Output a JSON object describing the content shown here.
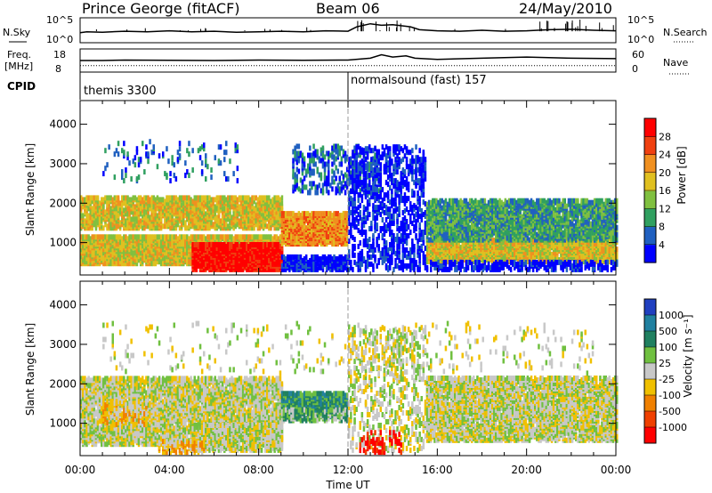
{
  "header": {
    "station": "Prince George (fitACF)",
    "beam": "Beam 06",
    "date": "24/May/2010"
  },
  "strip_nsky": {
    "left_label": "N.Sky",
    "right_label": "N.Search",
    "ticks_left": [
      "10^5",
      "10^0"
    ],
    "ticks_right": [
      "10^5",
      "10^0"
    ],
    "nsky_series": [
      [
        0.0,
        2.0
      ],
      [
        0.3,
        2.2
      ],
      [
        1.0,
        2.1
      ],
      [
        2.0,
        2.3
      ],
      [
        3.0,
        2.2
      ],
      [
        4.0,
        2.4
      ],
      [
        5.0,
        2.2
      ],
      [
        6.0,
        2.3
      ],
      [
        7.0,
        2.1
      ],
      [
        8.0,
        2.2
      ],
      [
        9.0,
        2.3
      ],
      [
        10.0,
        2.2
      ],
      [
        11.0,
        2.4
      ],
      [
        12.0,
        2.3
      ],
      [
        12.4,
        3.2
      ],
      [
        13.0,
        3.8
      ],
      [
        13.5,
        3.5
      ],
      [
        14.0,
        3.6
      ],
      [
        14.8,
        3.2
      ],
      [
        15.2,
        2.6
      ],
      [
        16.0,
        2.4
      ],
      [
        17.0,
        2.3
      ],
      [
        18.0,
        2.5
      ],
      [
        19.0,
        2.3
      ],
      [
        20.0,
        2.4
      ],
      [
        21.0,
        2.6
      ],
      [
        22.0,
        2.7
      ],
      [
        23.0,
        2.5
      ],
      [
        24.0,
        2.4
      ]
    ]
  },
  "strip_freq": {
    "left_label": "Freq.",
    "left_unit": "[MHz]",
    "right_label": "Nave",
    "ticks_left": [
      "18",
      "8"
    ],
    "ticks_right": [
      "60",
      "0"
    ],
    "nave_series": [
      [
        0.0,
        13.0
      ],
      [
        1.0,
        13.0
      ],
      [
        2.0,
        13.2
      ],
      [
        4.0,
        13.1
      ],
      [
        6.0,
        13.0
      ],
      [
        8.0,
        13.2
      ],
      [
        10.0,
        13.1
      ],
      [
        12.0,
        13.2
      ],
      [
        13.0,
        14.0
      ],
      [
        13.5,
        15.5
      ],
      [
        14.0,
        14.5
      ],
      [
        14.6,
        15.0
      ],
      [
        15.0,
        14.0
      ],
      [
        16.0,
        13.5
      ],
      [
        18.0,
        14.0
      ],
      [
        20.0,
        14.5
      ],
      [
        22.0,
        14.0
      ],
      [
        24.0,
        13.8
      ]
    ],
    "freq_series": [
      [
        0.0,
        10.8
      ],
      [
        24.0,
        10.8
      ]
    ]
  },
  "cpid": {
    "label": "CPID",
    "modes": [
      {
        "start_hour": 0.0,
        "text": "themis 3300"
      },
      {
        "start_hour": 12.0,
        "text": "normalsound (fast) 157"
      }
    ]
  },
  "chart_data": [
    {
      "type": "heatmap",
      "title": "",
      "xlabel": "",
      "ylabel": "Slant Range [km]",
      "ylim": [
        180,
        4600
      ],
      "yticks": [
        1000,
        2000,
        3000,
        4000
      ],
      "xlim": [
        0,
        24
      ],
      "colorbar_label": "Power [dB]",
      "colorbar_ticks": [
        "4",
        "8",
        "12",
        "16",
        "20",
        "24",
        "28"
      ],
      "colors": [
        "#0000ff",
        "#2060c0",
        "#30a060",
        "#80c040",
        "#e0c020",
        "#f09020",
        "#f04010",
        "#ff0000"
      ],
      "value_levels": [
        2,
        6,
        10,
        14,
        18,
        22,
        26,
        30
      ],
      "regions": [
        {
          "t0": 0.0,
          "t1": 9.0,
          "r0": 400,
          "r1": 1100,
          "level": 4,
          "density": 0.85
        },
        {
          "t0": 0.0,
          "t1": 9.0,
          "r0": 1300,
          "r1": 2100,
          "level": 4,
          "density": 0.7
        },
        {
          "t0": 5.0,
          "t1": 9.0,
          "r0": 250,
          "r1": 900,
          "level": 7,
          "density": 0.95
        },
        {
          "t0": 9.0,
          "t1": 12.0,
          "r0": 900,
          "r1": 1700,
          "level": 5,
          "density": 0.85
        },
        {
          "t0": 9.0,
          "t1": 12.0,
          "r0": 250,
          "r1": 600,
          "level": 0,
          "density": 0.7
        },
        {
          "t0": 9.5,
          "t1": 13.5,
          "r0": 2200,
          "r1": 3400,
          "level": 1,
          "density": 0.25
        },
        {
          "t0": 12.0,
          "t1": 15.5,
          "r0": 250,
          "r1": 3400,
          "level": 0,
          "density": 0.3
        },
        {
          "t0": 15.5,
          "t1": 24.0,
          "r0": 450,
          "r1": 1000,
          "level": 4,
          "density": 0.8
        },
        {
          "t0": 15.5,
          "t1": 24.0,
          "r0": 1000,
          "r1": 2000,
          "level": 2,
          "density": 0.75
        },
        {
          "t0": 15.5,
          "t1": 24.0,
          "r0": 250,
          "r1": 450,
          "level": 0,
          "density": 0.5
        },
        {
          "t0": 1.0,
          "t1": 7.0,
          "r0": 2500,
          "r1": 3500,
          "level": 1,
          "density": 0.06
        }
      ]
    },
    {
      "type": "heatmap",
      "title": "",
      "xlabel": "Time UT",
      "ylabel": "Slant Range [km]",
      "ylim": [
        180,
        4600
      ],
      "yticks": [
        1000,
        2000,
        3000,
        4000
      ],
      "xlim": [
        0,
        24
      ],
      "xticks": [
        "00:00",
        "04:00",
        "08:00",
        "12:00",
        "16:00",
        "20:00",
        "00:00"
      ],
      "colorbar_label": "Velocity [m s⁻¹]",
      "colorbar_ticks": [
        "1000",
        "500",
        "100",
        "25",
        "-25",
        "-100",
        "-500",
        "-1000"
      ],
      "colors": [
        "#2040c0",
        "#2080a0",
        "#208060",
        "#70c040",
        "#c8c8c8",
        "#f0c000",
        "#f08000",
        "#f04000",
        "#ff0000"
      ],
      "value_levels": [
        1200,
        700,
        300,
        60,
        0,
        -60,
        -300,
        -700,
        -1200
      ],
      "regions": [
        {
          "t0": 0.0,
          "t1": 9.0,
          "r0": 400,
          "r1": 2100,
          "level": 4,
          "density": 0.7
        },
        {
          "t0": 5.0,
          "t1": 9.0,
          "r0": 250,
          "r1": 900,
          "level": 4,
          "density": 0.6
        },
        {
          "t0": 1.0,
          "t1": 3.0,
          "r0": 900,
          "r1": 1500,
          "level": 5,
          "density": 0.35
        },
        {
          "t0": 3.5,
          "t1": 5.5,
          "r0": 200,
          "r1": 500,
          "level": 5,
          "density": 0.6
        },
        {
          "t0": 9.0,
          "t1": 12.0,
          "r0": 1100,
          "r1": 1700,
          "level": 2,
          "density": 0.85
        },
        {
          "t0": 9.0,
          "t1": 12.0,
          "r0": 1000,
          "r1": 1300,
          "level": 3,
          "density": 0.6
        },
        {
          "t0": 12.0,
          "t1": 15.5,
          "r0": 250,
          "r1": 3400,
          "level": 4,
          "density": 0.2
        },
        {
          "t0": 15.5,
          "t1": 24.0,
          "r0": 500,
          "r1": 2100,
          "level": 4,
          "density": 0.75
        },
        {
          "t0": 12.5,
          "t1": 14.5,
          "r0": 200,
          "r1": 700,
          "level": 8,
          "density": 0.15
        },
        {
          "t0": 1.0,
          "t1": 23.0,
          "r0": 2200,
          "r1": 3500,
          "level": 4,
          "density": 0.04
        }
      ]
    }
  ]
}
